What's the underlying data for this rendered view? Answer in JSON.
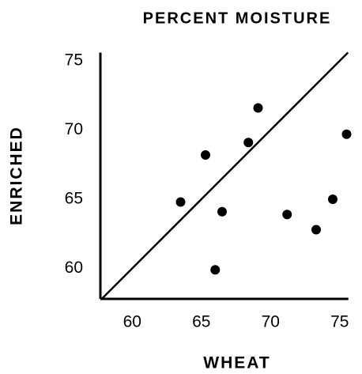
{
  "chart_data": {
    "type": "scatter",
    "title": "PERCENT MOISTURE",
    "x_label": "WHEAT",
    "y_label": "ENRICHED",
    "x": [
      63.5,
      65.3,
      66.0,
      66.5,
      68.4,
      69.1,
      71.2,
      73.3,
      74.5,
      75.5
    ],
    "y": [
      64.8,
      68.2,
      59.9,
      64.1,
      69.1,
      71.6,
      63.9,
      62.8,
      65.0,
      69.7
    ],
    "color": "#000000",
    "xlim": [
      57.7,
      76.2
    ],
    "ylim": [
      57.8,
      75.6
    ],
    "xticks": [
      60,
      65,
      70,
      75
    ],
    "yticks": [
      60,
      65,
      70,
      75
    ],
    "identity_line": true,
    "grid": false
  }
}
